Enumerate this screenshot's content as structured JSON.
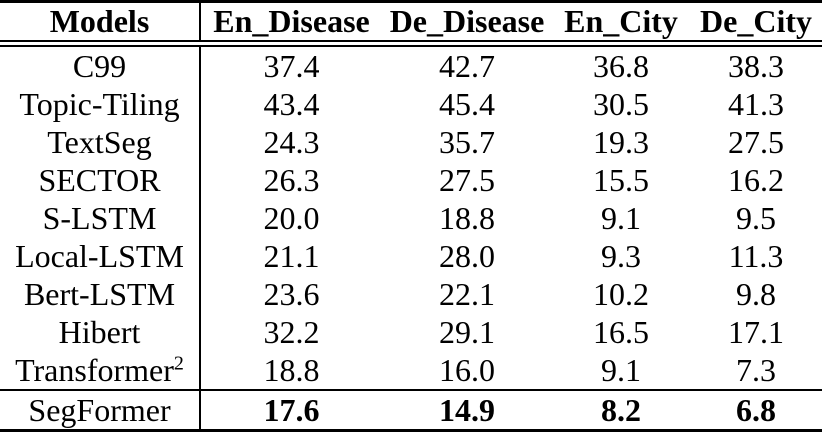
{
  "page": {
    "background_color": "#ffffff",
    "text_color": "#000000"
  },
  "table": {
    "columns": [
      "Models",
      "En_Disease",
      "De_Disease",
      "En_City",
      "De_City"
    ],
    "rows": [
      {
        "model": "C99",
        "values": [
          "37.4",
          "42.7",
          "36.8",
          "38.3"
        ]
      },
      {
        "model": "Topic-Tiling",
        "values": [
          "43.4",
          "45.4",
          "30.5",
          "41.3"
        ]
      },
      {
        "model": "TextSeg",
        "values": [
          "24.3",
          "35.7",
          "19.3",
          "27.5"
        ]
      },
      {
        "model": "SECTOR",
        "values": [
          "26.3",
          "27.5",
          "15.5",
          "16.2"
        ]
      },
      {
        "model": "S-LSTM",
        "values": [
          "20.0",
          "18.8",
          "9.1",
          "9.5"
        ]
      },
      {
        "model": "Local-LSTM",
        "values": [
          "21.1",
          "28.0",
          "9.3",
          "11.3"
        ]
      },
      {
        "model": "Bert-LSTM",
        "values": [
          "23.6",
          "22.1",
          "10.2",
          "9.8"
        ]
      },
      {
        "model": "Hibert",
        "values": [
          "32.2",
          "29.1",
          "16.5",
          "17.1"
        ]
      },
      {
        "model": "Transformer",
        "model_superscript": "2",
        "values": [
          "18.8",
          "16.0",
          "9.1",
          "7.3"
        ]
      },
      {
        "model": "SegFormer",
        "values": [
          "17.6",
          "14.9",
          "8.2",
          "6.8"
        ],
        "bold_values": true,
        "top_separator": true
      }
    ]
  }
}
